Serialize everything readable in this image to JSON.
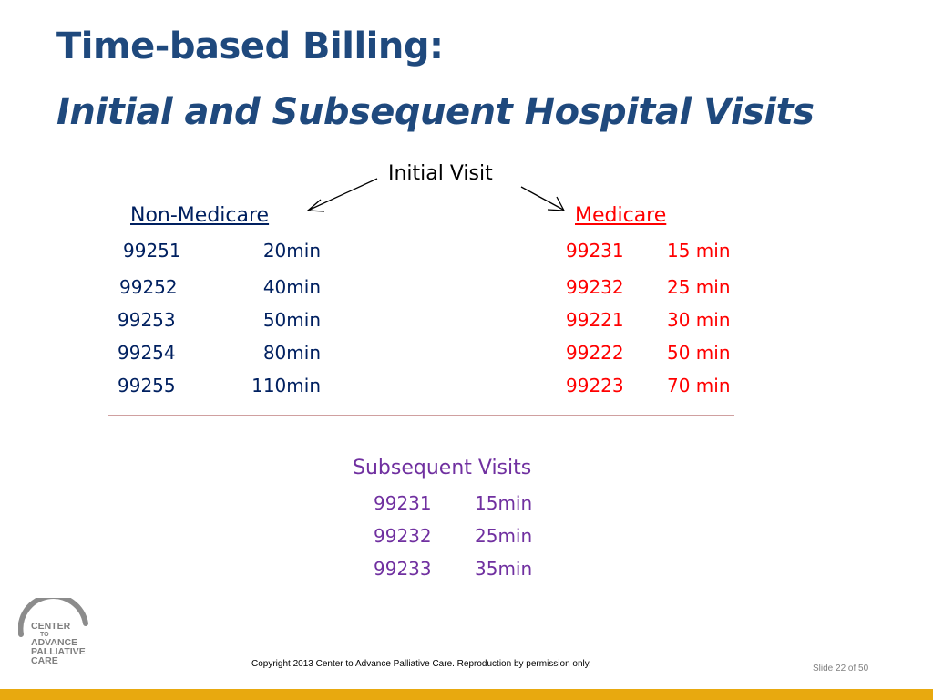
{
  "slide": {
    "title_line1": "Time-based Billing:",
    "title_line2": "Initial and Subsequent Hospital Visits",
    "initial_visit_label": "Initial Visit",
    "non_medicare": {
      "header": "Non-Medicare",
      "rows": [
        {
          "code": "99251",
          "time": "20min"
        },
        {
          "code": "99252",
          "time": "40min"
        },
        {
          "code": "99253",
          "time": "50min"
        },
        {
          "code": "99254",
          "time": "80min"
        },
        {
          "code": "99255",
          "time": "110min"
        }
      ]
    },
    "medicare": {
      "header": "Medicare",
      "rows": [
        {
          "code": "99231",
          "time": "15 min"
        },
        {
          "code": "99232",
          "time": "25 min"
        },
        {
          "code": "99221",
          "time": "30 min"
        },
        {
          "code": "99222",
          "time": "50 min"
        },
        {
          "code": "99223",
          "time": "70 min"
        }
      ]
    },
    "subsequent": {
      "header": "Subsequent Visits",
      "rows": [
        {
          "code": "99231",
          "time": "15min"
        },
        {
          "code": "99232",
          "time": "25min"
        },
        {
          "code": "99233",
          "time": "35min"
        }
      ]
    }
  },
  "footer": {
    "copyright": "Copyright 2013 Center to Advance Palliative Care. Reproduction by permission only.",
    "slide_number": "Slide 22 of 50",
    "logo_text": [
      "CENTER",
      "TO",
      "ADVANCE",
      "PALLIATIVE",
      "CARE"
    ]
  },
  "colors": {
    "title": "#1f497d",
    "non_medicare": "#002060",
    "medicare": "#ff0000",
    "subsequent": "#7030a0",
    "bottom_bar": "#e8a90f"
  }
}
